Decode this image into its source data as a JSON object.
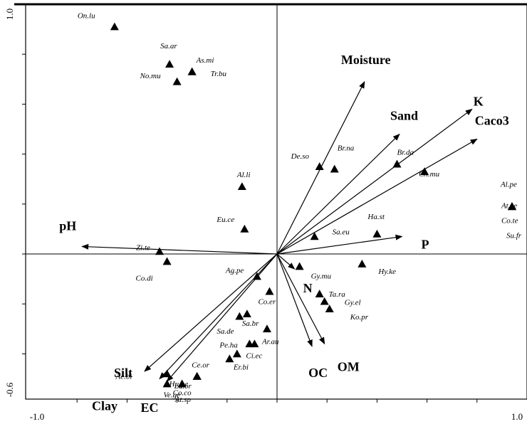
{
  "chart_data": {
    "type": "scatter",
    "title": "",
    "xlabel": "",
    "ylabel": "",
    "xlim": [
      -1.0,
      1.0
    ],
    "ylim": [
      -0.6,
      1.0
    ],
    "x_tick_labels": [
      "-1.0",
      "1.0"
    ],
    "y_tick_labels": [
      "1.0",
      "-0.6"
    ],
    "grid": false,
    "marker": "triangle",
    "color": "#000000",
    "points": [
      {
        "label": "On.lu",
        "x": -0.65,
        "y": 0.91
      },
      {
        "label": "Sa.ar",
        "x": -0.43,
        "y": 0.76
      },
      {
        "label": "As.mi",
        "x": -0.34,
        "y": 0.73
      },
      {
        "label": "No.mu",
        "x": -0.4,
        "y": 0.69
      },
      {
        "label": "Tr.bu",
        "x": -0.34,
        "y": 0.73
      },
      {
        "label": "De.so",
        "x": 0.17,
        "y": 0.35
      },
      {
        "label": "Br.na",
        "x": 0.23,
        "y": 0.34
      },
      {
        "label": "Br.da",
        "x": 0.48,
        "y": 0.36
      },
      {
        "label": "Ch.mu",
        "x": 0.59,
        "y": 0.33
      },
      {
        "label": "Al.li",
        "x": -0.14,
        "y": 0.27
      },
      {
        "label": "Al.pe",
        "x": 0.94,
        "y": 0.19
      },
      {
        "label": "At.ve",
        "x": 0.94,
        "y": 0.19
      },
      {
        "label": "Co.te",
        "x": 0.94,
        "y": 0.19
      },
      {
        "label": "Su.fr",
        "x": 0.94,
        "y": 0.19
      },
      {
        "label": "Eu.ce",
        "x": -0.13,
        "y": 0.1
      },
      {
        "label": "Ha.st",
        "x": 0.4,
        "y": 0.08
      },
      {
        "label": "Sa.eu",
        "x": 0.15,
        "y": 0.07
      },
      {
        "label": "Zi.te",
        "x": -0.47,
        "y": 0.01
      },
      {
        "label": "Co.di",
        "x": -0.44,
        "y": -0.03
      },
      {
        "label": "Ag.pe",
        "x": -0.08,
        "y": -0.09
      },
      {
        "label": "Gy.mu",
        "x": 0.09,
        "y": -0.05
      },
      {
        "label": "Hy.ke",
        "x": 0.34,
        "y": -0.04
      },
      {
        "label": "Ta.ra",
        "x": 0.17,
        "y": -0.16
      },
      {
        "label": "Gy.el",
        "x": 0.19,
        "y": -0.19
      },
      {
        "label": "Ko.pr",
        "x": 0.21,
        "y": -0.22
      },
      {
        "label": "Co.er",
        "x": -0.03,
        "y": -0.15
      },
      {
        "label": "Sa.br",
        "x": -0.12,
        "y": -0.24
      },
      {
        "label": "Sa.de",
        "x": -0.15,
        "y": -0.25
      },
      {
        "label": "Ar.au",
        "x": -0.04,
        "y": -0.3
      },
      {
        "label": "Pe.ha",
        "x": -0.09,
        "y": -0.36
      },
      {
        "label": "Ci.ec",
        "x": -0.11,
        "y": -0.36
      },
      {
        "label": "Er.bi",
        "x": -0.16,
        "y": -0.4
      },
      {
        "label": "Ce.or",
        "x": -0.19,
        "y": -0.42
      },
      {
        "label": "Ac.bi",
        "x": -0.44,
        "y": -0.48
      },
      {
        "label": "Ve.ge",
        "x": -0.44,
        "y": -0.52
      },
      {
        "label": "Co.co",
        "x": -0.38,
        "y": -0.52
      },
      {
        "label": "Hu.pe",
        "x": -0.32,
        "y": -0.49
      },
      {
        "label": "La.or",
        "x": -0.32,
        "y": -0.49
      },
      {
        "label": "At.sp",
        "x": -0.32,
        "y": -0.49
      }
    ],
    "vectors": [
      {
        "label": "Moisture",
        "x": 0.35,
        "y": 0.69
      },
      {
        "label": "Sand",
        "x": 0.49,
        "y": 0.48
      },
      {
        "label": "K",
        "x": 0.78,
        "y": 0.58
      },
      {
        "label": "Caco3",
        "x": 0.8,
        "y": 0.46
      },
      {
        "label": "P",
        "x": 0.5,
        "y": 0.07
      },
      {
        "label": "pH",
        "x": -0.78,
        "y": 0.03
      },
      {
        "label": "N",
        "x": 0.07,
        "y": -0.06
      },
      {
        "label": "OC",
        "x": 0.14,
        "y": -0.37
      },
      {
        "label": "OM",
        "x": 0.19,
        "y": -0.36
      },
      {
        "label": "Silt",
        "x": -0.53,
        "y": -0.47
      },
      {
        "label": "Clay",
        "x": -0.47,
        "y": -0.5
      },
      {
        "label": "EC",
        "x": -0.44,
        "y": -0.51
      }
    ]
  }
}
